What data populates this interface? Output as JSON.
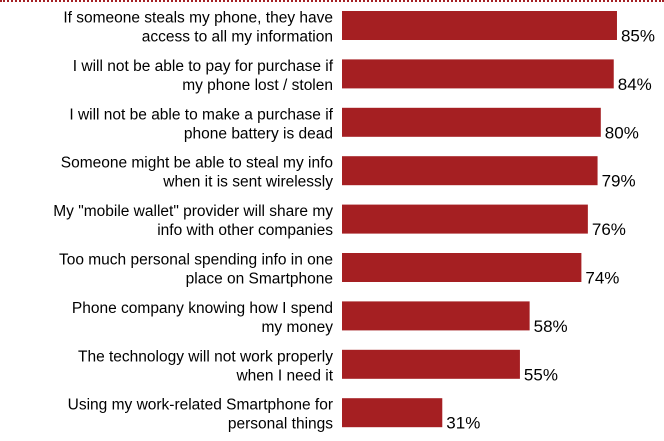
{
  "chart_data": {
    "type": "bar",
    "orientation": "horizontal",
    "bar_color": "#a51f22",
    "categories": [
      "If someone steals my phone, they have access to all my information",
      "I will not be able to pay for purchase if my phone lost / stolen",
      "I will not be able to make a purchase if phone battery is dead",
      "Someone might be able to steal my info when it is sent wirelessly",
      "My \"mobile wallet\" provider will share my info with other companies",
      "Too much personal spending info in one place on Smartphone",
      "Phone company knowing how I spend my money",
      "The technology will not work properly when I need it",
      "Using my work-related Smartphone for personal things"
    ],
    "category_lines": [
      [
        "If someone steals my phone, they have",
        "access to all my information"
      ],
      [
        "I will not be able to pay for purchase if",
        "my phone lost / stolen"
      ],
      [
        "I will not be able to make a purchase if",
        "phone battery is dead"
      ],
      [
        "Someone might be able to steal my info",
        "when it is sent wirelessly"
      ],
      [
        "My \"mobile wallet\" provider will share my",
        "info with other companies"
      ],
      [
        "Too much personal spending info in one",
        "place on Smartphone"
      ],
      [
        "Phone company knowing how I spend",
        "my money"
      ],
      [
        "The technology will not work properly",
        "when I need it"
      ],
      [
        "Using my work-related Smartphone for",
        "personal things"
      ]
    ],
    "values": [
      85,
      84,
      80,
      79,
      76,
      74,
      58,
      55,
      31
    ],
    "value_labels": [
      "85%",
      "84%",
      "80%",
      "79%",
      "76%",
      "74%",
      "58%",
      "55%",
      "31%"
    ],
    "xlim": [
      0,
      100
    ],
    "grid": false,
    "legend": "none"
  }
}
